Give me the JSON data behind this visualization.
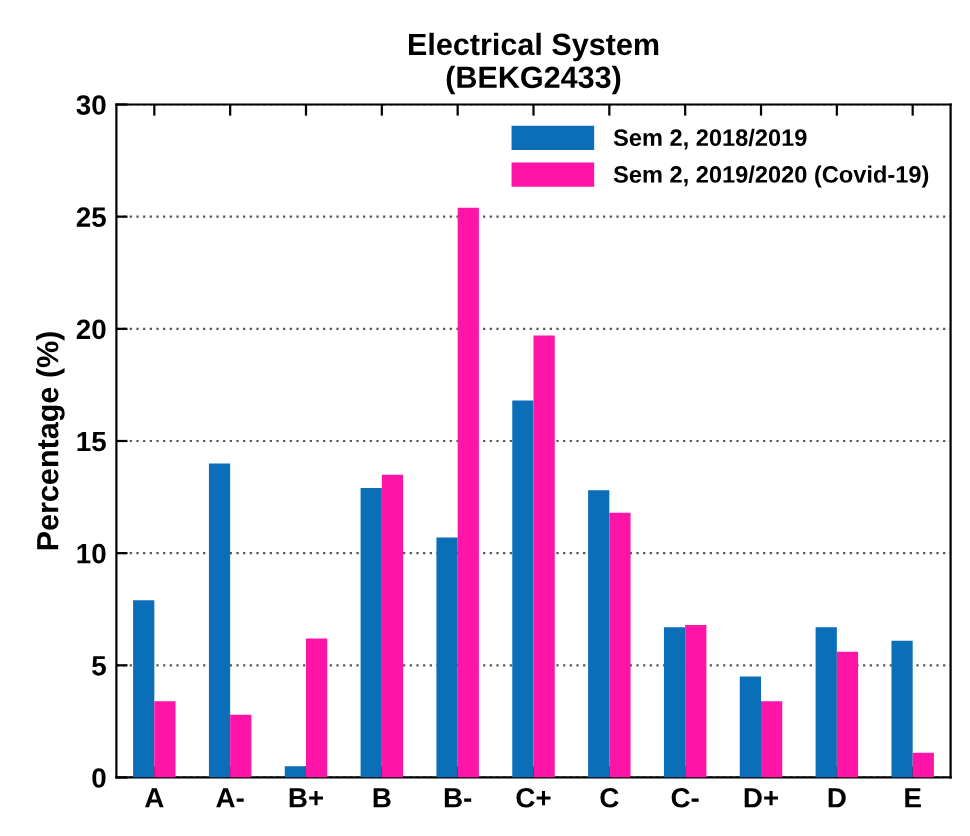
{
  "chart_data": {
    "type": "bar",
    "title": "Electrical System\n(BEKG2433)",
    "ylabel": "Percentage (%)",
    "categories": [
      "A",
      "A-",
      "B+",
      "B",
      "B-",
      "C+",
      "C",
      "C-",
      "D+",
      "D",
      "E"
    ],
    "series": [
      {
        "name": "Sem 2, 2018/2019",
        "color": "#0a6eb9",
        "values": [
          7.9,
          14.0,
          0.5,
          12.9,
          10.7,
          16.8,
          12.8,
          6.7,
          4.5,
          6.7,
          6.1
        ]
      },
      {
        "name": "Sem 2, 2019/2020 (Covid-19)",
        "color": "#ff14a8",
        "values": [
          3.4,
          2.8,
          6.2,
          13.5,
          25.4,
          19.7,
          11.8,
          6.8,
          3.4,
          5.6,
          1.1
        ]
      }
    ],
    "ylim": [
      0,
      30
    ],
    "yticks": [
      0,
      5,
      10,
      15,
      20,
      25,
      30
    ],
    "grid": "y",
    "legend": "top right"
  }
}
